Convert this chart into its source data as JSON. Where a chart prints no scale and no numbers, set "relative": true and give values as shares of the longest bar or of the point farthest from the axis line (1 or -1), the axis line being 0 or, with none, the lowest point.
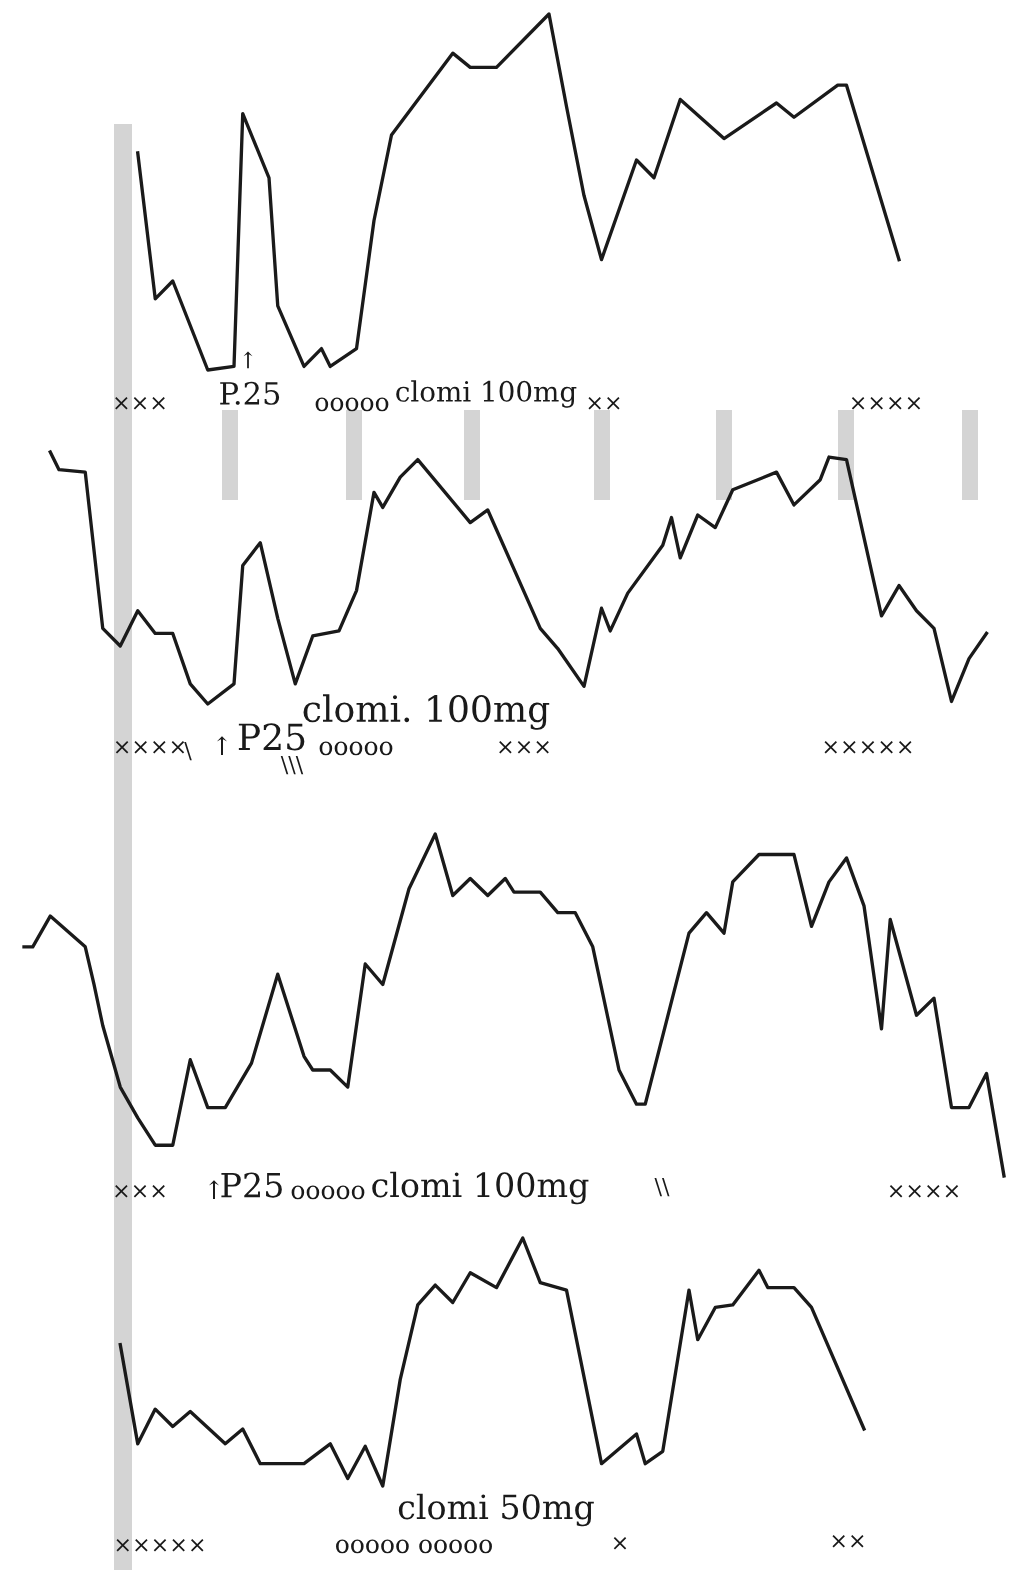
{
  "chart_data": [
    {
      "type": "line",
      "relative": true,
      "categories": [
        null,
        null,
        null,
        null,
        null,
        null,
        null,
        null,
        null,
        null,
        null,
        null,
        null,
        null,
        null,
        null,
        null,
        null,
        null,
        null,
        null,
        null,
        null,
        null,
        null,
        null,
        null,
        null,
        null,
        null,
        null,
        null,
        null,
        null,
        null,
        null,
        null,
        null,
        null,
        null,
        null,
        null,
        null,
        null,
        null,
        null,
        null,
        null,
        null,
        null,
        null,
        null,
        null,
        null,
        null,
        null,
        null,
        null,
        null,
        null,
        null,
        null,
        null,
        null,
        null,
        null,
        null,
        null,
        null,
        null,
        null,
        null,
        null,
        null,
        null,
        null,
        null,
        null,
        null,
        null,
        null,
        null,
        null,
        null,
        null,
        null,
        null,
        null,
        null,
        null,
        null,
        null,
        null,
        null,
        null,
        null,
        null,
        null,
        null,
        null,
        null,
        null,
        null,
        null,
        null,
        null,
        null,
        null,
        null,
        null,
        null,
        null,
        null
      ],
      "series": [
        {
          "color": "#1a1a1a",
          "values": [
            null,
            null,
            null,
            null,
            null,
            null,
            null,
            null,
            null,
            null,
            null,
            null,
            null,
            0.61,
            null,
            0.2,
            null,
            0.25,
            null,
            null,
            null,
            0,
            null,
            null,
            0.01,
            0.72,
            null,
            null,
            0.54,
            0.18,
            null,
            null,
            0.01,
            null,
            0.06,
            0.01,
            null,
            null,
            0.06,
            null,
            0.42,
            null,
            0.66,
            null,
            null,
            null,
            null,
            null,
            null,
            0.89,
            null,
            0.85,
            null,
            null,
            0.85,
            null,
            null,
            null,
            null,
            null,
            1,
            null,
            0.74,
            null,
            0.49,
            null,
            0.31,
            null,
            null,
            null,
            0.59,
            null,
            0.54,
            null,
            null,
            0.76,
            null,
            null,
            null,
            null,
            0.65,
            null,
            null,
            null,
            null,
            null,
            0.75,
            null,
            0.71,
            null,
            null,
            null,
            null,
            0.8,
            0.8,
            null,
            null,
            null,
            null,
            null,
            0.31,
            null,
            null,
            null,
            null,
            null,
            null,
            null,
            null,
            null,
            null,
            null,
            null
          ]
        }
      ],
      "annotations": [
        "×××",
        "↑",
        "P.25",
        "ooooo",
        "clomi 100mg",
        "××",
        "××××"
      ]
    },
    {
      "type": "line",
      "relative": true,
      "categories": [
        null,
        null,
        null,
        null,
        null,
        null,
        null,
        null,
        null,
        null,
        null,
        null,
        null,
        null,
        null,
        null,
        null,
        null,
        null,
        null,
        null,
        null,
        null,
        null,
        null,
        null,
        null,
        null,
        null,
        null,
        null,
        null,
        null,
        null,
        null,
        null,
        null,
        null,
        null,
        null,
        null,
        null,
        null,
        null,
        null,
        null,
        null,
        null,
        null,
        null,
        null,
        null,
        null,
        null,
        null,
        null,
        null,
        null,
        null,
        null,
        null,
        null,
        null,
        null,
        null,
        null,
        null,
        null,
        null,
        null,
        null,
        null,
        null,
        null,
        null,
        null,
        null,
        null,
        null,
        null,
        null,
        null,
        null,
        null,
        null,
        null,
        null,
        null,
        null,
        null,
        null,
        null,
        null,
        null,
        null,
        null,
        null,
        null,
        null,
        null,
        null,
        null,
        null,
        null,
        null,
        null,
        null,
        null,
        null,
        null,
        null,
        null,
        null
      ],
      "series": [
        {
          "color": "#1a1a1a",
          "values": [
            null,
            null,
            null,
            1,
            0.93,
            null,
            null,
            0.92,
            null,
            0.3,
            null,
            0.23,
            null,
            0.37,
            null,
            0.28,
            null,
            0.28,
            null,
            0.08,
            null,
            0,
            null,
            null,
            0.08,
            0.55,
            null,
            0.64,
            null,
            0.34,
            null,
            0.08,
            null,
            0.27,
            null,
            null,
            0.29,
            null,
            0.45,
            null,
            0.84,
            0.78,
            null,
            0.9,
            null,
            0.97,
            null,
            null,
            null,
            null,
            null,
            0.72,
            null,
            0.77,
            null,
            null,
            null,
            null,
            null,
            0.3,
            null,
            0.22,
            null,
            null,
            0.07,
            null,
            0.38,
            0.29,
            null,
            0.44,
            null,
            null,
            null,
            0.63,
            0.74,
            0.58,
            null,
            0.75,
            null,
            0.7,
            null,
            0.85,
            null,
            null,
            null,
            null,
            0.92,
            null,
            0.79,
            null,
            null,
            0.89,
            0.98,
            null,
            0.97,
            null,
            null,
            null,
            0.35,
            null,
            0.47,
            null,
            0.37,
            null,
            0.3,
            null,
            0.01,
            null,
            0.18,
            null,
            0.28,
            null,
            null
          ]
        }
      ],
      "annotations": [
        "××××",
        "\\",
        "↑",
        "P25",
        "clomi. 100mg",
        "ooooo",
        "\\\\\\",
        "×××",
        "×××××"
      ]
    },
    {
      "type": "line",
      "relative": true,
      "categories": [
        null,
        null,
        null,
        null,
        null,
        null,
        null,
        null,
        null,
        null,
        null,
        null,
        null,
        null,
        null,
        null,
        null,
        null,
        null,
        null,
        null,
        null,
        null,
        null,
        null,
        null,
        null,
        null,
        null,
        null,
        null,
        null,
        null,
        null,
        null,
        null,
        null,
        null,
        null,
        null,
        null,
        null,
        null,
        null,
        null,
        null,
        null,
        null,
        null,
        null,
        null,
        null,
        null,
        null,
        null,
        null,
        null,
        null,
        null,
        null,
        null,
        null,
        null,
        null,
        null,
        null,
        null,
        null,
        null,
        null,
        null,
        null,
        null,
        null,
        null,
        null,
        null,
        null,
        null,
        null,
        null,
        null,
        null,
        null,
        null,
        null,
        null,
        null,
        null,
        null,
        null,
        null,
        null,
        null,
        null,
        null,
        null,
        null,
        null,
        null,
        null,
        null,
        null,
        null,
        null,
        null,
        null,
        null,
        null,
        null,
        null,
        null,
        null
      ],
      "series": [
        {
          "color": "#1a1a1a",
          "values": [
            0.67,
            0.67,
            null,
            0.76,
            null,
            null,
            null,
            0.67,
            0.56,
            0.44,
            null,
            0.26,
            null,
            0.17,
            null,
            0.09,
            null,
            0.09,
            null,
            0.34,
            null,
            0.2,
            null,
            0.2,
            null,
            null,
            0.33,
            null,
            null,
            0.59,
            null,
            null,
            0.35,
            0.31,
            null,
            0.31,
            null,
            0.26,
            null,
            0.62,
            null,
            0.56,
            null,
            null,
            0.84,
            null,
            null,
            1,
            null,
            0.82,
            null,
            0.87,
            null,
            0.82,
            null,
            0.87,
            0.83,
            null,
            null,
            0.83,
            null,
            0.77,
            null,
            0.77,
            null,
            0.67,
            null,
            null,
            0.31,
            null,
            0.21,
            0.21,
            null,
            null,
            null,
            null,
            0.71,
            null,
            0.77,
            null,
            0.71,
            0.86,
            null,
            null,
            0.94,
            null,
            null,
            null,
            0.94,
            null,
            0.73,
            null,
            0.86,
            null,
            0.93,
            null,
            0.79,
            null,
            0.43,
            0.75,
            null,
            null,
            0.47,
            null,
            0.52,
            null,
            0.2,
            null,
            0.2,
            null,
            0.3,
            null,
            0
          ]
        }
      ],
      "annotations": [
        "×××",
        "↑",
        "P25",
        "ooooo",
        "clomi 100mg",
        "\\\\",
        "××××"
      ]
    },
    {
      "type": "line",
      "relative": true,
      "categories": [
        null,
        null,
        null,
        null,
        null,
        null,
        null,
        null,
        null,
        null,
        null,
        null,
        null,
        null,
        null,
        null,
        null,
        null,
        null,
        null,
        null,
        null,
        null,
        null,
        null,
        null,
        null,
        null,
        null,
        null,
        null,
        null,
        null,
        null,
        null,
        null,
        null,
        null,
        null,
        null,
        null,
        null,
        null,
        null,
        null,
        null,
        null,
        null,
        null,
        null,
        null,
        null,
        null,
        null,
        null,
        null,
        null,
        null,
        null,
        null,
        null,
        null,
        null,
        null,
        null,
        null,
        null,
        null,
        null,
        null,
        null,
        null,
        null,
        null,
        null,
        null,
        null,
        null,
        null,
        null,
        null,
        null,
        null,
        null,
        null,
        null,
        null,
        null,
        null,
        null,
        null,
        null,
        null,
        null,
        null,
        null,
        null,
        null,
        null,
        null,
        null,
        null,
        null,
        null,
        null,
        null,
        null,
        null,
        null,
        null,
        null,
        null,
        null
      ],
      "series": [
        {
          "color": "#1a1a1a",
          "values": [
            null,
            null,
            null,
            null,
            null,
            null,
            null,
            null,
            null,
            null,
            null,
            0.57,
            null,
            0.17,
            null,
            0.31,
            null,
            0.24,
            null,
            0.3,
            null,
            null,
            null,
            0.17,
            null,
            0.23,
            null,
            0.09,
            null,
            null,
            null,
            null,
            0.09,
            null,
            null,
            0.17,
            null,
            0.03,
            null,
            0.16,
            null,
            0,
            null,
            0.43,
            null,
            0.73,
            null,
            0.81,
            null,
            0.74,
            null,
            0.86,
            null,
            null,
            0.8,
            null,
            null,
            1,
            null,
            0.82,
            null,
            null,
            0.79,
            null,
            null,
            null,
            0.09,
            null,
            null,
            null,
            0.21,
            0.09,
            null,
            0.14,
            null,
            null,
            0.79,
            0.59,
            null,
            0.72,
            null,
            0.73,
            null,
            null,
            0.87,
            0.8,
            null,
            null,
            0.8,
            null,
            0.72,
            null,
            null,
            null,
            null,
            null,
            0.23,
            null,
            null,
            null,
            null,
            null,
            null,
            null,
            null,
            null,
            null,
            null,
            null,
            null,
            null,
            null,
            null
          ]
        }
      ],
      "annotations": [
        "clomi 50mg",
        "×××××",
        "ooooo ooooo",
        "×",
        "××"
      ]
    }
  ]
}
